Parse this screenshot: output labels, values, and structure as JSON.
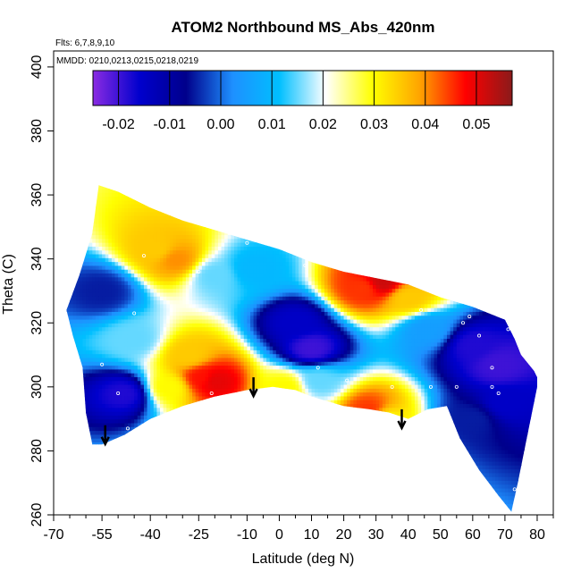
{
  "chart_data": {
    "type": "heatmap",
    "title": "ATOM2 Northbound MS_Abs_420nm",
    "subtitle_lines": [
      "Flts: 6,7,8,9,10",
      "MMDD: 0210,0213,0215,0218,0219"
    ],
    "xlabel": "Latitude (deg N)",
    "ylabel": "Theta (C)",
    "xlim": [
      -70,
      85
    ],
    "ylim": [
      260,
      405
    ],
    "x_ticks": [
      -70,
      -55,
      -40,
      -25,
      -10,
      0,
      10,
      20,
      30,
      40,
      50,
      60,
      70,
      80
    ],
    "x_minor_ticks": [
      -65,
      -60,
      -50,
      -45,
      -35,
      -30,
      -20,
      -15,
      -5,
      5,
      15,
      25,
      35,
      45,
      55,
      65,
      75,
      85
    ],
    "y_ticks": [
      260,
      280,
      300,
      320,
      340,
      360,
      380,
      400
    ],
    "colorbar": {
      "min": -0.025,
      "max": 0.057,
      "ticks": [
        -0.02,
        -0.01,
        0.0,
        0.01,
        0.02,
        0.03,
        0.04,
        0.05
      ],
      "tick_labels": [
        "-0.02",
        "-0.01",
        "0.00",
        "0.01",
        "0.02",
        "0.03",
        "0.04",
        "0.05"
      ],
      "colors": [
        "#8a2be2",
        "#0000cd",
        "#00008b",
        "#1e90ff",
        "#00bfff",
        "#ffffff",
        "#ffff00",
        "#ffa500",
        "#ff0000",
        "#8b1a1a"
      ]
    },
    "boundary_top": [
      [
        -56,
        363
      ],
      [
        -50,
        361
      ],
      [
        -40,
        356
      ],
      [
        -30,
        352
      ],
      [
        -20,
        349
      ],
      [
        -10,
        346
      ],
      [
        0,
        343
      ],
      [
        10,
        339
      ],
      [
        20,
        336
      ],
      [
        30,
        334
      ],
      [
        40,
        332
      ],
      [
        50,
        328
      ],
      [
        60,
        325
      ],
      [
        70,
        321
      ],
      [
        73,
        315
      ],
      [
        75,
        310
      ],
      [
        79,
        305
      ],
      [
        80,
        303
      ]
    ],
    "boundary_bottom": [
      [
        80,
        300
      ],
      [
        77,
        285
      ],
      [
        74,
        270
      ],
      [
        72,
        261
      ],
      [
        68,
        266
      ],
      [
        62,
        274
      ],
      [
        56,
        284
      ],
      [
        52,
        294
      ],
      [
        46,
        293
      ],
      [
        40,
        290
      ],
      [
        34,
        292
      ],
      [
        28,
        293
      ],
      [
        20,
        294
      ],
      [
        10,
        297
      ],
      [
        5,
        299
      ],
      [
        -2,
        300
      ],
      [
        -10,
        299
      ],
      [
        -20,
        297
      ],
      [
        -30,
        294
      ],
      [
        -40,
        290
      ],
      [
        -48,
        285
      ],
      [
        -55,
        282
      ],
      [
        -58,
        282
      ]
    ],
    "boundary_left": [
      [
        -58,
        282
      ],
      [
        -60,
        292
      ],
      [
        -61,
        306
      ],
      [
        -64,
        316
      ],
      [
        -66,
        324
      ],
      [
        -62,
        335
      ],
      [
        -58,
        348
      ],
      [
        -56,
        363
      ]
    ],
    "features": [
      {
        "lat": -38,
        "theta": 343,
        "value": 0.035
      },
      {
        "lat": -32,
        "theta": 340,
        "value": 0.04
      },
      {
        "lat": -20,
        "theta": 335,
        "value": 0.015
      },
      {
        "lat": -24,
        "theta": 303,
        "value": 0.047
      },
      {
        "lat": -20,
        "theta": 302,
        "value": 0.05
      },
      {
        "lat": -28,
        "theta": 310,
        "value": 0.035
      },
      {
        "lat": -34,
        "theta": 300,
        "value": 0.03
      },
      {
        "lat": 32,
        "theta": 333,
        "value": 0.052
      },
      {
        "lat": 26,
        "theta": 331,
        "value": 0.045
      },
      {
        "lat": 40,
        "theta": 328,
        "value": 0.035
      },
      {
        "lat": 28,
        "theta": 293,
        "value": 0.045
      },
      {
        "lat": 32,
        "theta": 290,
        "value": 0.03
      },
      {
        "lat": 2,
        "theta": 300,
        "value": 0.03
      },
      {
        "lat": 12,
        "theta": 302,
        "value": 0.015
      },
      {
        "lat": -48,
        "theta": 298,
        "value": -0.018
      },
      {
        "lat": 5,
        "theta": 320,
        "value": -0.015
      },
      {
        "lat": 10,
        "theta": 312,
        "value": -0.02
      },
      {
        "lat": 60,
        "theta": 313,
        "value": -0.018
      },
      {
        "lat": 68,
        "theta": 307,
        "value": -0.02
      },
      {
        "lat": 70,
        "theta": 295,
        "value": -0.015
      },
      {
        "lat": 60,
        "theta": 290,
        "value": -0.005
      },
      {
        "lat": -55,
        "theta": 330,
        "value": -0.005
      },
      {
        "lat": -45,
        "theta": 315,
        "value": 0.015
      },
      {
        "lat": -8,
        "theta": 337,
        "value": 0.01
      },
      {
        "lat": 46,
        "theta": 318,
        "value": 0.005
      }
    ],
    "sample_points": [
      [
        -42,
        341
      ],
      [
        -25,
        336
      ],
      [
        -10,
        345
      ],
      [
        8,
        338
      ],
      [
        -45,
        323
      ],
      [
        -55,
        307
      ],
      [
        -50,
        298
      ],
      [
        -47,
        287
      ],
      [
        -21,
        298
      ],
      [
        12,
        306
      ],
      [
        21,
        302
      ],
      [
        26,
        292
      ],
      [
        32,
        335
      ],
      [
        35,
        300
      ],
      [
        39,
        333
      ],
      [
        44,
        324
      ],
      [
        47,
        300
      ],
      [
        55,
        300
      ],
      [
        57,
        320
      ],
      [
        59,
        322
      ],
      [
        62,
        316
      ],
      [
        66,
        306
      ],
      [
        66,
        300
      ],
      [
        68,
        298
      ],
      [
        71,
        318
      ],
      [
        73,
        268
      ]
    ],
    "arrows": [
      [
        -54,
        288
      ],
      [
        -8,
        303
      ],
      [
        38,
        293
      ]
    ]
  }
}
